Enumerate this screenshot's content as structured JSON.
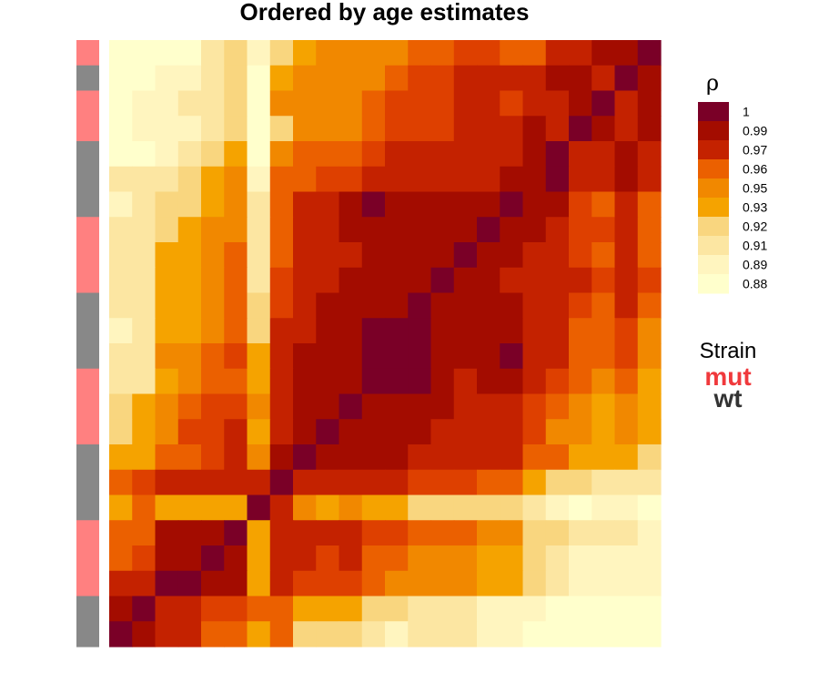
{
  "chart_data": {
    "type": "heatmap",
    "title": "Ordered by age estimates",
    "n": 24,
    "colors": [
      "#FFFFCC",
      "#FFF5BF",
      "#FCE6A2",
      "#F9D67F",
      "#F5A300",
      "#F18800",
      "#EB6000",
      "#DE4000",
      "#C42200",
      "#A30C00",
      "#7A0027"
    ],
    "legend": {
      "title": "ρ",
      "labels": [
        "1",
        "0.99",
        "0.97",
        "0.96",
        "0.95",
        "0.93",
        "0.92",
        "0.91",
        "0.89",
        "0.88"
      ],
      "swatch_colors": [
        "#7A0027",
        "#A30C00",
        "#C42200",
        "#EB6000",
        "#F18800",
        "#F5A300",
        "#F9D67F",
        "#FCE6A2",
        "#FFF5BF",
        "#FFFFCC"
      ]
    },
    "strain_legend": {
      "title": "Strain",
      "items": [
        {
          "label": "mut",
          "color": "#F0393C"
        },
        {
          "label": "wt",
          "color": "#333333"
        }
      ]
    },
    "strain_colors": {
      "mut": "#FF8080",
      "wt": "#888888"
    },
    "row_strain": [
      "mut",
      "wt",
      "mut",
      "mut",
      "wt",
      "wt",
      "wt",
      "mut",
      "mut",
      "mut",
      "wt",
      "wt",
      "wt",
      "mut",
      "mut",
      "mut",
      "wt",
      "wt",
      "wt",
      "mut",
      "mut",
      "mut",
      "wt",
      "wt"
    ],
    "matrix": [
      [
        0,
        0,
        0,
        0,
        2,
        3,
        1,
        3,
        4,
        5,
        5,
        5,
        5,
        6,
        6,
        7,
        7,
        6,
        6,
        8,
        8,
        9,
        9,
        10
      ],
      [
        0,
        0,
        1,
        1,
        2,
        3,
        0,
        4,
        5,
        5,
        5,
        5,
        6,
        7,
        7,
        8,
        8,
        8,
        8,
        9,
        9,
        8,
        10,
        9
      ],
      [
        0,
        1,
        1,
        2,
        2,
        3,
        0,
        5,
        5,
        5,
        5,
        6,
        7,
        7,
        7,
        8,
        8,
        7,
        8,
        8,
        9,
        10,
        8,
        9
      ],
      [
        0,
        1,
        1,
        1,
        2,
        3,
        0,
        3,
        5,
        5,
        5,
        6,
        7,
        7,
        7,
        8,
        8,
        8,
        9,
        8,
        10,
        9,
        8,
        9
      ],
      [
        0,
        0,
        1,
        2,
        3,
        4,
        0,
        5,
        6,
        6,
        6,
        7,
        8,
        8,
        8,
        8,
        8,
        8,
        9,
        10,
        8,
        8,
        9,
        8
      ],
      [
        2,
        2,
        2,
        3,
        4,
        5,
        1,
        6,
        6,
        7,
        7,
        8,
        8,
        8,
        8,
        8,
        8,
        9,
        9,
        10,
        8,
        8,
        9,
        8
      ],
      [
        1,
        2,
        3,
        3,
        4,
        5,
        2,
        6,
        8,
        8,
        9,
        10,
        9,
        9,
        9,
        9,
        9,
        10,
        9,
        9,
        7,
        6,
        8,
        6
      ],
      [
        2,
        2,
        3,
        4,
        5,
        5,
        2,
        6,
        8,
        8,
        9,
        9,
        9,
        9,
        9,
        9,
        10,
        9,
        9,
        8,
        7,
        7,
        8,
        6
      ],
      [
        2,
        2,
        4,
        4,
        5,
        6,
        2,
        6,
        8,
        8,
        8,
        9,
        9,
        9,
        9,
        10,
        9,
        9,
        8,
        8,
        7,
        6,
        8,
        6
      ],
      [
        2,
        2,
        4,
        4,
        5,
        6,
        2,
        7,
        8,
        8,
        9,
        9,
        9,
        9,
        10,
        9,
        9,
        8,
        8,
        8,
        8,
        7,
        8,
        7
      ],
      [
        2,
        2,
        4,
        4,
        5,
        6,
        3,
        7,
        8,
        9,
        9,
        9,
        9,
        10,
        9,
        9,
        9,
        9,
        8,
        8,
        7,
        6,
        8,
        6
      ],
      [
        1,
        2,
        4,
        4,
        5,
        6,
        3,
        8,
        8,
        9,
        9,
        10,
        10,
        10,
        9,
        9,
        9,
        9,
        8,
        8,
        6,
        6,
        7,
        5
      ],
      [
        2,
        2,
        5,
        5,
        6,
        7,
        4,
        8,
        9,
        9,
        9,
        10,
        10,
        10,
        9,
        9,
        9,
        10,
        8,
        8,
        6,
        6,
        7,
        5
      ],
      [
        2,
        2,
        4,
        5,
        6,
        6,
        4,
        8,
        9,
        9,
        9,
        10,
        10,
        10,
        9,
        8,
        9,
        9,
        8,
        7,
        6,
        5,
        6,
        4
      ],
      [
        3,
        4,
        5,
        6,
        7,
        7,
        5,
        8,
        9,
        9,
        10,
        9,
        9,
        9,
        9,
        8,
        8,
        8,
        7,
        6,
        5,
        4,
        5,
        4
      ],
      [
        3,
        4,
        5,
        7,
        7,
        8,
        4,
        8,
        9,
        10,
        9,
        9,
        9,
        9,
        8,
        8,
        8,
        8,
        7,
        5,
        5,
        4,
        5,
        4
      ],
      [
        4,
        4,
        6,
        6,
        7,
        8,
        5,
        9,
        10,
        9,
        9,
        9,
        9,
        8,
        8,
        8,
        8,
        8,
        6,
        6,
        4,
        4,
        4,
        3
      ],
      [
        6,
        7,
        8,
        8,
        8,
        8,
        8,
        10,
        8,
        8,
        8,
        8,
        8,
        7,
        7,
        7,
        6,
        6,
        4,
        3,
        3,
        2,
        2,
        2
      ],
      [
        4,
        6,
        4,
        4,
        4,
        4,
        10,
        8,
        5,
        4,
        5,
        4,
        4,
        3,
        3,
        3,
        3,
        3,
        2,
        1,
        0,
        1,
        1,
        0
      ],
      [
        6,
        6,
        9,
        9,
        9,
        10,
        4,
        8,
        8,
        8,
        8,
        7,
        7,
        6,
        6,
        6,
        5,
        5,
        3,
        3,
        2,
        2,
        2,
        1
      ],
      [
        6,
        7,
        9,
        9,
        10,
        9,
        4,
        8,
        8,
        7,
        8,
        6,
        6,
        5,
        5,
        5,
        4,
        4,
        3,
        2,
        1,
        1,
        1,
        1
      ],
      [
        8,
        8,
        10,
        10,
        9,
        9,
        4,
        8,
        7,
        7,
        7,
        6,
        5,
        5,
        5,
        5,
        4,
        4,
        3,
        2,
        1,
        1,
        1,
        1
      ],
      [
        9,
        10,
        8,
        8,
        7,
        7,
        6,
        6,
        4,
        4,
        4,
        3,
        3,
        2,
        2,
        2,
        1,
        1,
        1,
        0,
        0,
        0,
        0,
        0
      ],
      [
        10,
        9,
        8,
        8,
        6,
        6,
        4,
        6,
        3,
        3,
        3,
        2,
        1,
        2,
        2,
        2,
        1,
        1,
        0,
        0,
        0,
        0,
        0,
        0
      ]
    ]
  }
}
